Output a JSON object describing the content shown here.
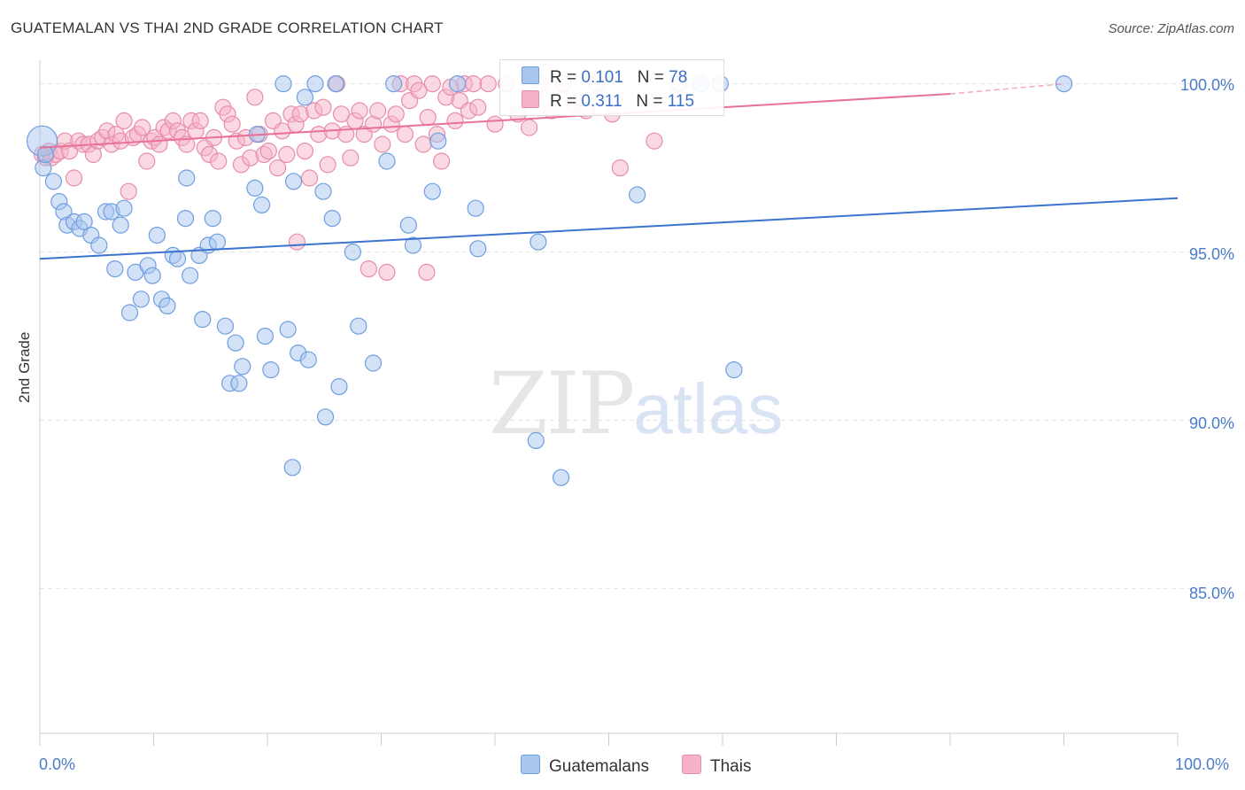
{
  "header": {
    "title": "GUATEMALAN VS THAI 2ND GRADE CORRELATION CHART",
    "source": "Source: ZipAtlas.com"
  },
  "watermark": {
    "zip": "ZIP",
    "atlas": "atlas"
  },
  "legend_top": {
    "rows": [
      {
        "r_label": "R =",
        "r_value": "0.101",
        "n_label": "N =",
        "n_value": "78",
        "color": "#a8c6ee"
      },
      {
        "r_label": "R =",
        "r_value": "0.311",
        "n_label": "N =",
        "n_value": "115",
        "color": "#f6b3c8"
      }
    ]
  },
  "legend_bottom": [
    {
      "label": "Guatemalans",
      "color": "#a8c6ee"
    },
    {
      "label": "Thais",
      "color": "#f6b3c8"
    }
  ],
  "colors": {
    "blue": "#3a73d0",
    "pink": "#e8709a",
    "blue_fill": "#a8c6ee",
    "pink_fill": "#f6b3c8"
  },
  "chart_data": {
    "type": "scatter",
    "title": "GUATEMALAN VS THAI 2ND GRADE CORRELATION CHART",
    "ylabel": "2nd Grade",
    "xlabel": "",
    "xlim": [
      0,
      100
    ],
    "ylim": [
      80.7,
      100.7
    ],
    "x_tick_labels": [
      "0.0%",
      "100.0%"
    ],
    "y_tick_labels": [
      "100.0%",
      "95.0%",
      "90.0%",
      "85.0%"
    ],
    "y_ticks": [
      100,
      95,
      90,
      85
    ],
    "grid": true,
    "series": [
      {
        "name": "Guatemalans",
        "trend": {
          "x": [
            0,
            100
          ],
          "y": [
            94.8,
            96.6
          ]
        },
        "points": [
          [
            0.2,
            98.3
          ],
          [
            0.3,
            97.5
          ],
          [
            1.2,
            97.1
          ],
          [
            1.7,
            96.5
          ],
          [
            2.1,
            96.2
          ],
          [
            2.4,
            95.8
          ],
          [
            3.0,
            95.9
          ],
          [
            3.5,
            95.7
          ],
          [
            3.9,
            95.9
          ],
          [
            4.5,
            95.5
          ],
          [
            5.2,
            95.2
          ],
          [
            5.8,
            96.2
          ],
          [
            6.3,
            96.2
          ],
          [
            6.6,
            94.5
          ],
          [
            7.1,
            95.8
          ],
          [
            7.4,
            96.3
          ],
          [
            7.9,
            93.2
          ],
          [
            8.4,
            94.4
          ],
          [
            8.9,
            93.6
          ],
          [
            9.5,
            94.6
          ],
          [
            9.9,
            94.3
          ],
          [
            10.3,
            95.5
          ],
          [
            10.7,
            93.6
          ],
          [
            11.2,
            93.4
          ],
          [
            11.7,
            94.9
          ],
          [
            12.1,
            94.8
          ],
          [
            12.8,
            96.0
          ],
          [
            12.9,
            97.2
          ],
          [
            13.2,
            94.3
          ],
          [
            14.0,
            94.9
          ],
          [
            14.3,
            93.0
          ],
          [
            14.8,
            95.2
          ],
          [
            15.2,
            96.0
          ],
          [
            15.6,
            95.3
          ],
          [
            16.3,
            92.8
          ],
          [
            16.7,
            91.1
          ],
          [
            17.2,
            92.3
          ],
          [
            17.5,
            91.1
          ],
          [
            17.8,
            91.6
          ],
          [
            18.9,
            96.9
          ],
          [
            19.1,
            98.5
          ],
          [
            19.5,
            96.4
          ],
          [
            19.8,
            92.5
          ],
          [
            20.3,
            91.5
          ],
          [
            21.4,
            100.0
          ],
          [
            21.8,
            92.7
          ],
          [
            22.2,
            88.6
          ],
          [
            22.3,
            97.1
          ],
          [
            22.7,
            92.0
          ],
          [
            23.3,
            99.6
          ],
          [
            23.6,
            91.8
          ],
          [
            24.2,
            100.0
          ],
          [
            24.9,
            96.8
          ],
          [
            25.1,
            90.1
          ],
          [
            25.7,
            96.0
          ],
          [
            26.0,
            100.0
          ],
          [
            26.3,
            91.0
          ],
          [
            27.5,
            95.0
          ],
          [
            28.0,
            92.8
          ],
          [
            29.3,
            91.7
          ],
          [
            30.5,
            97.7
          ],
          [
            31.1,
            100.0
          ],
          [
            32.4,
            95.8
          ],
          [
            32.8,
            95.2
          ],
          [
            34.5,
            96.8
          ],
          [
            35.0,
            98.3
          ],
          [
            36.7,
            100.0
          ],
          [
            38.3,
            96.3
          ],
          [
            38.5,
            95.1
          ],
          [
            43.6,
            89.4
          ],
          [
            43.8,
            95.3
          ],
          [
            45.8,
            88.3
          ],
          [
            52.5,
            96.7
          ],
          [
            58.1,
            100.0
          ],
          [
            59.8,
            100.0
          ],
          [
            61.0,
            91.5
          ],
          [
            90.0,
            100.0
          ],
          [
            0.5,
            97.9
          ]
        ]
      },
      {
        "name": "Thais",
        "trend": {
          "x": [
            0,
            80
          ],
          "y": [
            98.1,
            99.7
          ]
        },
        "trend_dashed": {
          "x": [
            80,
            90
          ],
          "y": [
            99.7,
            100.0
          ]
        },
        "points": [
          [
            0.2,
            97.9
          ],
          [
            0.5,
            97.8
          ],
          [
            0.8,
            98.0
          ],
          [
            1.0,
            97.8
          ],
          [
            1.4,
            97.9
          ],
          [
            1.8,
            98.0
          ],
          [
            2.2,
            98.3
          ],
          [
            2.6,
            98.0
          ],
          [
            3.0,
            97.2
          ],
          [
            3.4,
            98.3
          ],
          [
            3.8,
            98.2
          ],
          [
            4.3,
            98.2
          ],
          [
            4.7,
            97.9
          ],
          [
            5.1,
            98.3
          ],
          [
            5.5,
            98.4
          ],
          [
            5.9,
            98.6
          ],
          [
            6.3,
            98.2
          ],
          [
            6.7,
            98.5
          ],
          [
            7.1,
            98.3
          ],
          [
            7.4,
            98.9
          ],
          [
            7.8,
            96.8
          ],
          [
            8.2,
            98.4
          ],
          [
            8.6,
            98.5
          ],
          [
            9.0,
            98.7
          ],
          [
            9.4,
            97.7
          ],
          [
            9.8,
            98.3
          ],
          [
            10.1,
            98.4
          ],
          [
            10.5,
            98.2
          ],
          [
            10.9,
            98.7
          ],
          [
            11.3,
            98.6
          ],
          [
            11.7,
            98.9
          ],
          [
            12.1,
            98.6
          ],
          [
            12.5,
            98.4
          ],
          [
            12.9,
            98.2
          ],
          [
            13.3,
            98.9
          ],
          [
            13.7,
            98.6
          ],
          [
            14.1,
            98.9
          ],
          [
            14.5,
            98.1
          ],
          [
            14.9,
            97.9
          ],
          [
            15.3,
            98.4
          ],
          [
            15.7,
            97.7
          ],
          [
            16.1,
            99.3
          ],
          [
            16.5,
            99.1
          ],
          [
            16.9,
            98.8
          ],
          [
            17.3,
            98.3
          ],
          [
            17.7,
            97.6
          ],
          [
            18.1,
            98.4
          ],
          [
            18.5,
            97.8
          ],
          [
            18.9,
            99.6
          ],
          [
            19.3,
            98.5
          ],
          [
            19.7,
            97.9
          ],
          [
            20.1,
            98.0
          ],
          [
            20.5,
            98.9
          ],
          [
            20.9,
            97.5
          ],
          [
            21.3,
            98.6
          ],
          [
            21.7,
            97.9
          ],
          [
            22.1,
            99.1
          ],
          [
            22.5,
            98.8
          ],
          [
            22.9,
            99.1
          ],
          [
            23.3,
            98.0
          ],
          [
            23.7,
            97.2
          ],
          [
            24.1,
            99.2
          ],
          [
            24.5,
            98.5
          ],
          [
            24.9,
            99.3
          ],
          [
            25.3,
            97.6
          ],
          [
            25.7,
            98.6
          ],
          [
            26.1,
            100.0
          ],
          [
            26.5,
            99.1
          ],
          [
            26.9,
            98.5
          ],
          [
            27.3,
            97.8
          ],
          [
            27.7,
            98.9
          ],
          [
            28.1,
            99.2
          ],
          [
            28.5,
            98.5
          ],
          [
            28.9,
            94.5
          ],
          [
            29.3,
            98.8
          ],
          [
            29.7,
            99.2
          ],
          [
            30.1,
            98.2
          ],
          [
            30.5,
            94.4
          ],
          [
            30.9,
            98.8
          ],
          [
            31.3,
            99.1
          ],
          [
            31.7,
            100.0
          ],
          [
            32.1,
            98.5
          ],
          [
            32.5,
            99.5
          ],
          [
            32.9,
            100.0
          ],
          [
            33.3,
            99.8
          ],
          [
            33.7,
            98.2
          ],
          [
            34.1,
            99.0
          ],
          [
            34.5,
            100.0
          ],
          [
            34.9,
            98.5
          ],
          [
            35.3,
            97.7
          ],
          [
            35.7,
            99.6
          ],
          [
            36.1,
            99.9
          ],
          [
            36.5,
            98.9
          ],
          [
            36.9,
            99.5
          ],
          [
            37.3,
            100.0
          ],
          [
            37.7,
            99.2
          ],
          [
            38.1,
            100.0
          ],
          [
            38.5,
            99.3
          ],
          [
            39.4,
            100.0
          ],
          [
            40.0,
            98.8
          ],
          [
            41.0,
            100.0
          ],
          [
            42.0,
            99.1
          ],
          [
            43.0,
            98.7
          ],
          [
            44.0,
            100.0
          ],
          [
            45.0,
            99.2
          ],
          [
            46.0,
            100.0
          ],
          [
            47.0,
            99.4
          ],
          [
            48.0,
            99.2
          ],
          [
            49.0,
            100.0
          ],
          [
            50.3,
            99.1
          ],
          [
            51.0,
            97.5
          ],
          [
            54.0,
            98.3
          ],
          [
            56.2,
            100.0
          ],
          [
            22.6,
            95.3
          ],
          [
            34.0,
            94.4
          ]
        ]
      }
    ]
  }
}
